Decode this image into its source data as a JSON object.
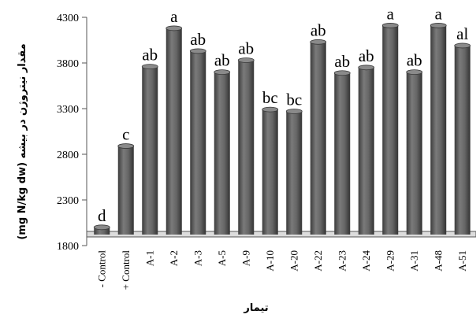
{
  "chart_data": {
    "type": "bar",
    "title": "",
    "xlabel": "تیمار",
    "ylabel": "(mg N/kg dw) مقدار نیتروژن در بیشه",
    "ylim": [
      1800,
      4300
    ],
    "yticks": [
      1800,
      2300,
      2800,
      3300,
      3800,
      4300
    ],
    "grid": false,
    "bar_color": "#5a5a5a",
    "categories": [
      "- Control",
      "+ Control",
      "A-1",
      "A-2",
      "A-3",
      "A-5",
      "A-9",
      "A-10",
      "A-20",
      "A-22",
      "A-23",
      "A-24",
      "A-29",
      "A-31",
      "A-48",
      "A-51"
    ],
    "values": [
      2000,
      2890,
      3760,
      4180,
      3930,
      3700,
      3830,
      3290,
      3270,
      4030,
      3690,
      3750,
      4210,
      3700,
      4210,
      3990
    ],
    "significance_labels": [
      "d",
      "c",
      "ab",
      "a",
      "ab",
      "ab",
      "ab",
      "bc",
      "bc",
      "ab",
      "ab",
      "ab",
      "a",
      "ab",
      "a",
      "al"
    ]
  }
}
